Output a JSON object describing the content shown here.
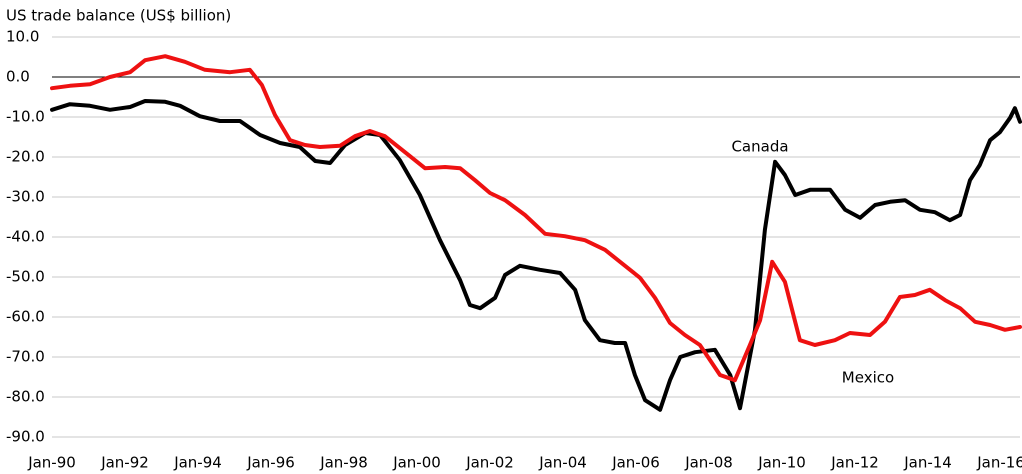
{
  "chart_data": {
    "type": "line",
    "title": "US trade balance (US$ billion)",
    "xlim": [
      1990,
      2016.52
    ],
    "xticks": [
      {
        "value": 1990,
        "label": "Jan-90"
      },
      {
        "value": 1992,
        "label": "Jan-92"
      },
      {
        "value": 1994,
        "label": "Jan-94"
      },
      {
        "value": 1996,
        "label": "Jan-96"
      },
      {
        "value": 1998,
        "label": "Jan-98"
      },
      {
        "value": 2000,
        "label": "Jan-00"
      },
      {
        "value": 2002,
        "label": "Jan-02"
      },
      {
        "value": 2004,
        "label": "Jan-04"
      },
      {
        "value": 2006,
        "label": "Jan-06"
      },
      {
        "value": 2008,
        "label": "Jan-08"
      },
      {
        "value": 2010,
        "label": "Jan-10"
      },
      {
        "value": 2012,
        "label": "Jan-12"
      },
      {
        "value": 2014,
        "label": "Jan-14"
      },
      {
        "value": 2016,
        "label": "Jan-16"
      }
    ],
    "ylim": [
      -90,
      10
    ],
    "yticks": [
      {
        "value": 10,
        "label": "10.0"
      },
      {
        "value": 0,
        "label": "0.0"
      },
      {
        "value": -10,
        "label": "-10.0"
      },
      {
        "value": -20,
        "label": "-20.0"
      },
      {
        "value": -30,
        "label": "-30.0"
      },
      {
        "value": -40,
        "label": "-40.0"
      },
      {
        "value": -50,
        "label": "-50.0"
      },
      {
        "value": -60,
        "label": "-60.0"
      },
      {
        "value": -70,
        "label": "-70.0"
      },
      {
        "value": -80,
        "label": "-80.0"
      },
      {
        "value": -90,
        "label": "-90.0"
      }
    ],
    "grid": true,
    "series": [
      {
        "name": "Canada",
        "color": "#000000",
        "x": [
          1990.0,
          1990.49,
          1991.04,
          1991.59,
          1992.14,
          1992.55,
          1993.1,
          1993.51,
          1994.05,
          1994.6,
          1995.15,
          1995.7,
          1996.25,
          1996.79,
          1997.21,
          1997.62,
          1998.03,
          1998.58,
          1998.99,
          1999.53,
          2000.08,
          2000.63,
          2001.18,
          2001.45,
          2001.73,
          2002.14,
          2002.41,
          2002.82,
          2003.37,
          2003.92,
          2004.33,
          2004.6,
          2005.01,
          2005.42,
          2005.7,
          2005.97,
          2006.25,
          2006.66,
          2006.93,
          2007.21,
          2007.62,
          2008.16,
          2008.58,
          2008.85,
          2009.26,
          2009.53,
          2009.81,
          2010.08,
          2010.36,
          2010.77,
          2011.32,
          2011.73,
          2012.14,
          2012.55,
          2012.96,
          2013.37,
          2013.78,
          2014.19,
          2014.6,
          2014.88,
          2015.15,
          2015.42,
          2015.7,
          2015.97,
          2016.25,
          2016.38,
          2016.52
        ],
        "values": [
          -8.2,
          -6.8,
          -7.2,
          -8.2,
          -7.5,
          -6,
          -6.2,
          -7.2,
          -9.8,
          -11,
          -11,
          -14.5,
          -16.5,
          -17.5,
          -21,
          -21.5,
          -17,
          -14,
          -14.5,
          -20.8,
          -29.5,
          -40.8,
          -50.8,
          -57,
          -57.8,
          -55.2,
          -49.5,
          -47.2,
          -48.2,
          -49,
          -53.2,
          -60.8,
          -65.8,
          -66.5,
          -66.5,
          -74.5,
          -80.8,
          -83.2,
          -75.8,
          -70,
          -68.8,
          -68.2,
          -74.5,
          -82.8,
          -63.2,
          -38.2,
          -21.2,
          -24.5,
          -29.5,
          -28.2,
          -28.2,
          -33.2,
          -35.2,
          -32,
          -31.2,
          -30.8,
          -33.2,
          -33.8,
          -35.8,
          -34.5,
          -25.8,
          -22,
          -15.8,
          -13.8,
          -10.2,
          -7.8,
          -11.2
        ]
      },
      {
        "name": "Mexico",
        "color": "#ee1111",
        "x": [
          1990.0,
          1990.49,
          1991.04,
          1991.59,
          1992.14,
          1992.55,
          1993.1,
          1993.64,
          1994.19,
          1994.88,
          1995.42,
          1995.75,
          1996.11,
          1996.52,
          1996.93,
          1997.34,
          1997.89,
          1998.3,
          1998.71,
          1999.12,
          1999.67,
          2000.22,
          2000.77,
          2001.18,
          2001.59,
          2002.0,
          2002.41,
          2002.96,
          2003.51,
          2004.05,
          2004.6,
          2005.15,
          2005.56,
          2006.11,
          2006.52,
          2006.93,
          2007.34,
          2007.75,
          2008.3,
          2008.71,
          2009.12,
          2009.4,
          2009.73,
          2010.08,
          2010.49,
          2010.9,
          2011.45,
          2011.86,
          2012.41,
          2012.82,
          2013.23,
          2013.64,
          2014.05,
          2014.47,
          2014.88,
          2015.29,
          2015.7,
          2016.11,
          2016.52
        ],
        "values": [
          -2.8,
          -2.2,
          -1.8,
          0,
          1.2,
          4.2,
          5.2,
          3.8,
          1.8,
          1.2,
          1.8,
          -2,
          -9.5,
          -15.8,
          -17,
          -17.5,
          -17.2,
          -14.8,
          -13.5,
          -14.8,
          -18.8,
          -22.8,
          -22.5,
          -22.8,
          -25.8,
          -29,
          -30.8,
          -34.5,
          -39.2,
          -39.8,
          -40.8,
          -43.2,
          -46.2,
          -50.2,
          -55.2,
          -61.5,
          -64.5,
          -67,
          -74.5,
          -75.8,
          -67,
          -60.8,
          -46.2,
          -51.2,
          -65.8,
          -67,
          -65.8,
          -64,
          -64.5,
          -61.2,
          -55,
          -54.5,
          -53.2,
          -55.8,
          -57.8,
          -61.2,
          -62,
          -63.2,
          -62.5
        ]
      }
    ]
  }
}
